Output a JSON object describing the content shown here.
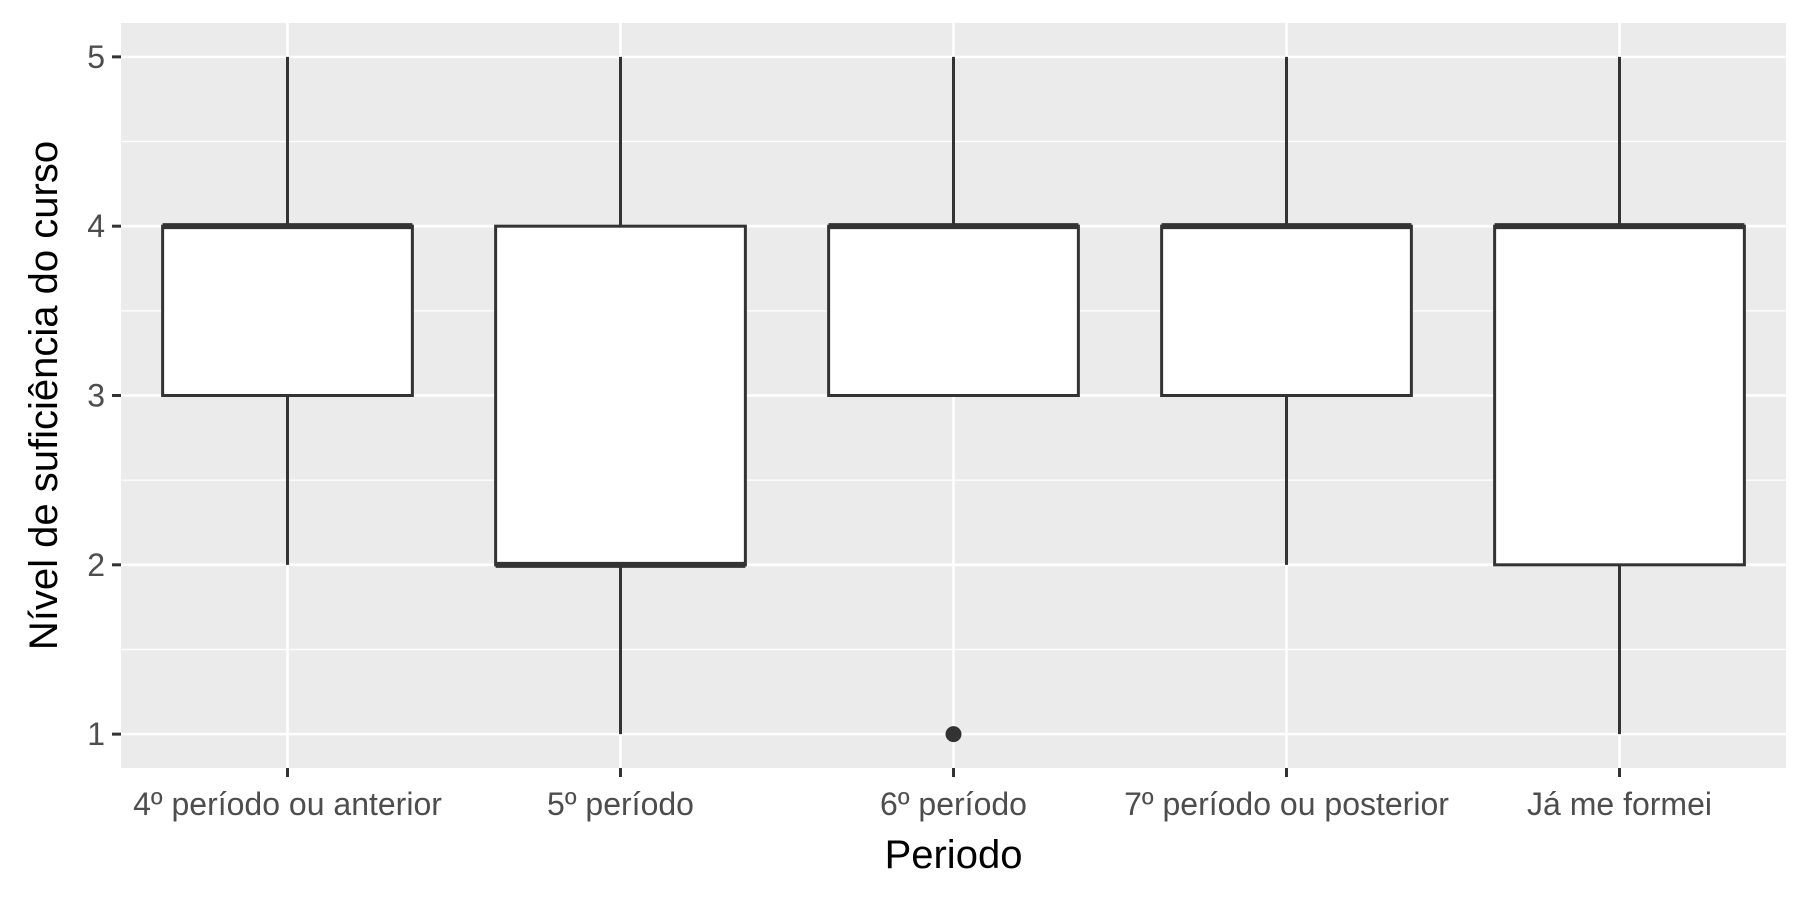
{
  "chart_data": {
    "type": "boxplot",
    "title": "",
    "xlabel": "Periodo",
    "ylabel": "Nível de suficiência do curso",
    "categories": [
      "4º período ou anterior",
      "5º período",
      "6º período",
      "7º período ou posterior",
      "Já me formei"
    ],
    "boxes": [
      {
        "category": "4º período ou anterior",
        "whisker_low": 2,
        "q1": 3,
        "median": 4,
        "q3": 4,
        "whisker_high": 5,
        "outliers": []
      },
      {
        "category": "5º período",
        "whisker_low": 1,
        "q1": 2,
        "median": 2,
        "q3": 4,
        "whisker_high": 5,
        "outliers": []
      },
      {
        "category": "6º período",
        "whisker_low": 3,
        "q1": 3,
        "median": 4,
        "q3": 4,
        "whisker_high": 5,
        "outliers": [
          1
        ]
      },
      {
        "category": "7º período ou posterior",
        "whisker_low": 2,
        "q1": 3,
        "median": 4,
        "q3": 4,
        "whisker_high": 5,
        "outliers": []
      },
      {
        "category": "Já me formei",
        "whisker_low": 1,
        "q1": 2,
        "median": 4,
        "q3": 4,
        "whisker_high": 5,
        "outliers": []
      }
    ],
    "yticks": [
      1,
      2,
      3,
      4,
      5
    ],
    "ylim": [
      0.8,
      5.2
    ],
    "grid": true,
    "legend": "none",
    "colors": {
      "panel_background": "#ebebeb",
      "grid_line": "#ffffff",
      "box_fill": "#ffffff",
      "box_stroke": "#333333",
      "tick_text": "#4d4d4d",
      "tick_mark": "#333333",
      "title_text": "#000000"
    }
  }
}
